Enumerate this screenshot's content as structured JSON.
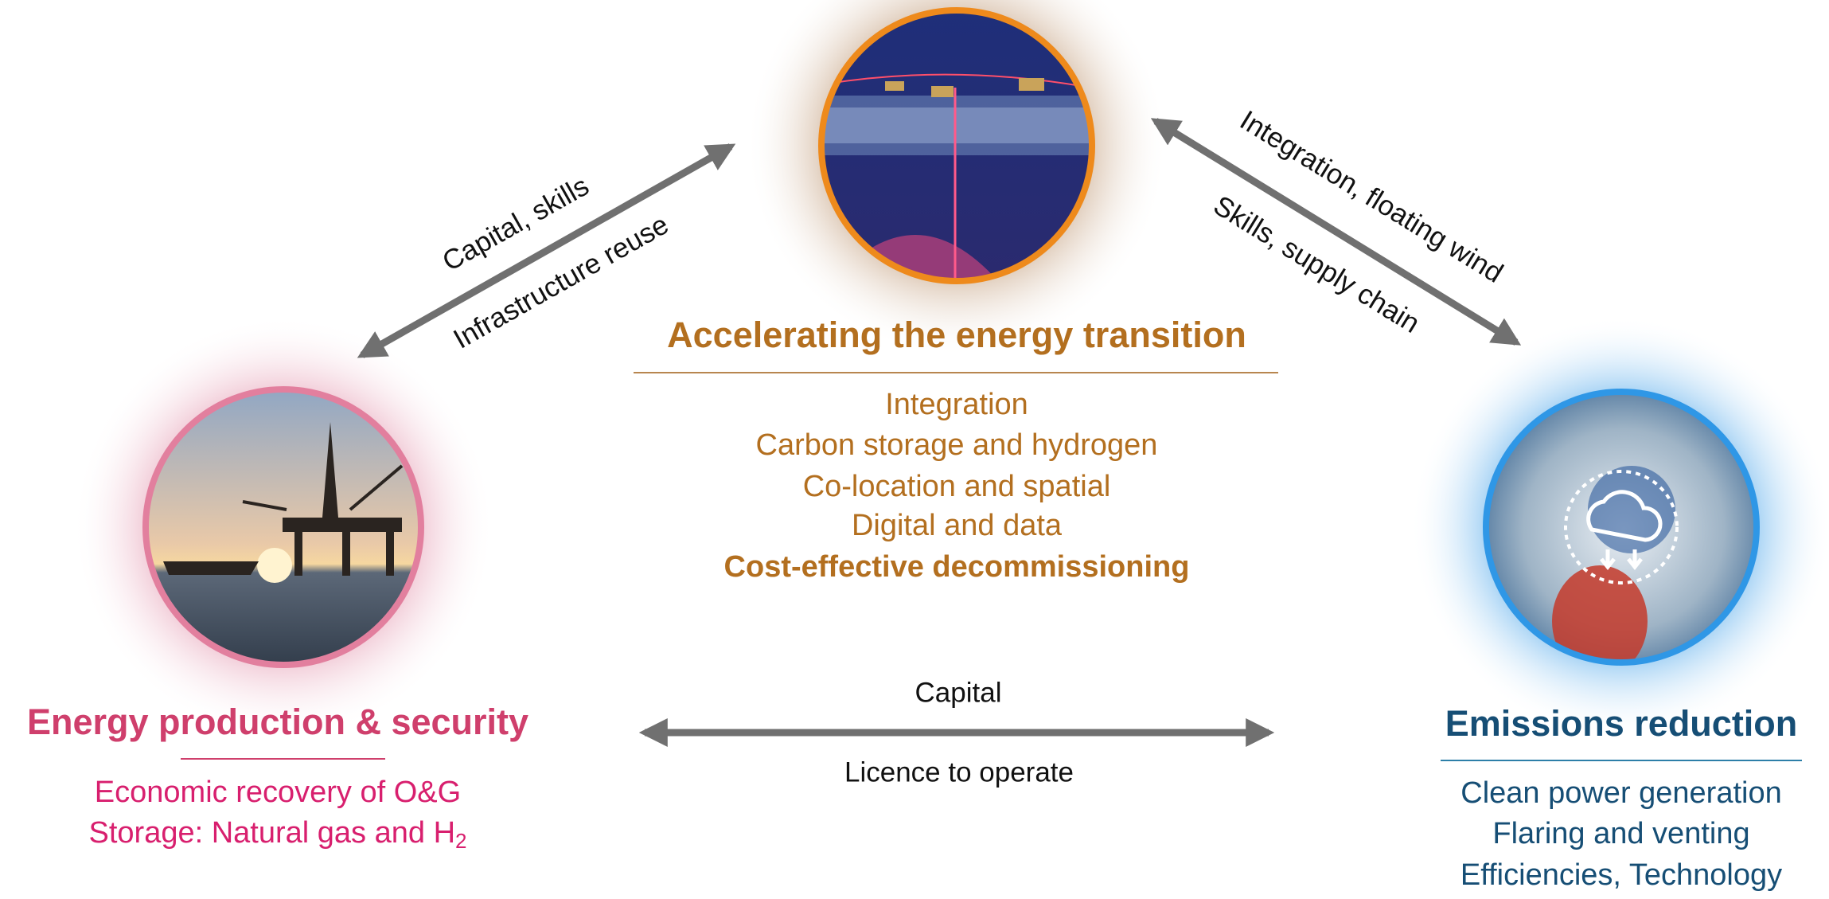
{
  "nodes": [
    {
      "title": "Accelerating the energy transition",
      "items": [
        "Integration",
        "Carbon storage and hydrogen",
        "Co-location and spatial",
        "Digital and data",
        "Cost-effective decommissioning"
      ]
    },
    {
      "title": "Energy production & security",
      "items": [
        "Economic recovery of O&G",
        {
          "text": "Storage: Natural gas and H",
          "sub": "2"
        }
      ]
    },
    {
      "title": "Emissions reduction",
      "items": [
        "Clean power generation",
        "Flaring and venting",
        "Efficiencies, Technology"
      ]
    }
  ],
  "edges": [
    {
      "labels": [
        "Capital, skills",
        "Infrastructure reuse"
      ]
    },
    {
      "labels": [
        "Integration, floating wind",
        "Skills, supply chain"
      ]
    },
    {
      "labels": [
        "Capital",
        "Licence to operate"
      ]
    }
  ]
}
